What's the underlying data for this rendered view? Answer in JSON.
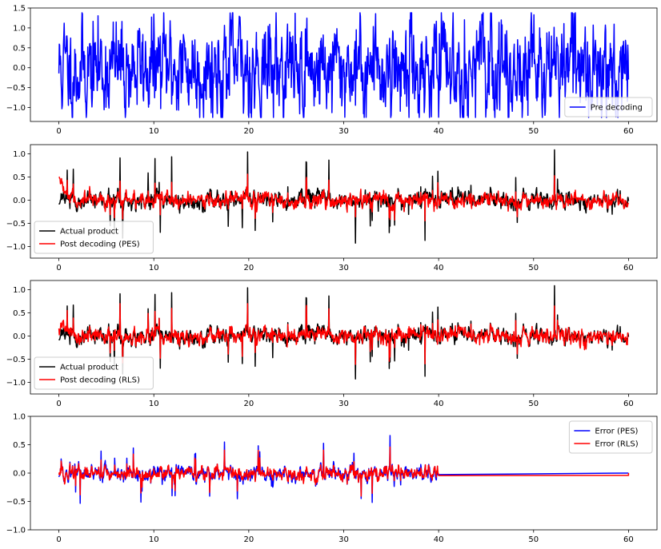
{
  "figure": {
    "background": "#ffffff"
  },
  "chart_data": [
    {
      "type": "line",
      "xlim": [
        -3,
        63
      ],
      "ylim": [
        -1.35,
        1.5
      ],
      "x_ticks": [
        0,
        10,
        20,
        30,
        40,
        50,
        60
      ],
      "y_ticks": [
        -1.0,
        -0.5,
        0.0,
        0.5,
        1.0,
        1.5
      ],
      "y_tick_labels": [
        "−1.0",
        "−0.5",
        "0.0",
        "0.5",
        "1.0",
        "1.5"
      ],
      "legend": {
        "placement": "lower-right"
      },
      "series": [
        {
          "name": "Pre decoding",
          "color": "#0000ff",
          "signal": {
            "kind": "noise",
            "seed": 11,
            "dt": 0.04,
            "x_end": 60,
            "amp": 0.52,
            "smooth": 0.55,
            "clip": [
              -1.25,
              1.38
            ]
          }
        }
      ]
    },
    {
      "type": "line",
      "xlim": [
        -3,
        63
      ],
      "ylim": [
        -1.25,
        1.2
      ],
      "x_ticks": [
        0,
        10,
        20,
        30,
        40,
        50,
        60
      ],
      "y_ticks": [
        -1.0,
        -0.5,
        0.0,
        0.5,
        1.0
      ],
      "y_tick_labels": [
        "−1.0",
        "−0.5",
        "0.0",
        "0.5",
        "1.0"
      ],
      "legend": {
        "placement": "lower-left"
      },
      "series": [
        {
          "name": "Actual product",
          "color": "#000000",
          "signal": {
            "kind": "spiky",
            "seed": 23,
            "dt": 0.04,
            "x_end": 60,
            "amp": 0.08,
            "smooth": 0.6,
            "spike_rate": 0.025,
            "spike_amp": 0.95,
            "clip": [
              -1.18,
              1.14
            ]
          }
        },
        {
          "name": "Post decoding (PES)",
          "color": "#ff0000",
          "signal": {
            "kind": "follow",
            "source": 0,
            "seed": 31,
            "gain": 0.45,
            "noise": 0.06,
            "start_bump": 0.45,
            "clip": [
              -0.75,
              0.65
            ]
          }
        }
      ]
    },
    {
      "type": "line",
      "xlim": [
        -3,
        63
      ],
      "ylim": [
        -1.25,
        1.2
      ],
      "x_ticks": [
        0,
        10,
        20,
        30,
        40,
        50,
        60
      ],
      "y_ticks": [
        -1.0,
        -0.5,
        0.0,
        0.5,
        1.0
      ],
      "y_tick_labels": [
        "−1.0",
        "−0.5",
        "0.0",
        "0.5",
        "1.0"
      ],
      "legend": {
        "placement": "lower-left"
      },
      "series": [
        {
          "name": "Actual product",
          "color": "#000000",
          "signal": {
            "kind": "spiky",
            "seed": 23,
            "dt": 0.04,
            "x_end": 60,
            "amp": 0.08,
            "smooth": 0.6,
            "spike_rate": 0.025,
            "spike_amp": 0.95,
            "clip": [
              -1.18,
              1.14
            ]
          }
        },
        {
          "name": "Post decoding (RLS)",
          "color": "#ff0000",
          "signal": {
            "kind": "follow",
            "source": 0,
            "seed": 47,
            "gain": 0.65,
            "noise": 0.05,
            "start_bump": 0.3,
            "clip": [
              -0.72,
              0.7
            ]
          }
        }
      ]
    },
    {
      "type": "line",
      "xlim": [
        -3,
        63
      ],
      "ylim": [
        -1.0,
        1.0
      ],
      "x_ticks": [
        0,
        10,
        20,
        30,
        40,
        50,
        60
      ],
      "y_ticks": [
        -1.0,
        -0.5,
        0.0,
        0.5,
        1.0
      ],
      "y_tick_labels": [
        "−1.0",
        "−0.5",
        "0.0",
        "0.5",
        "1.0"
      ],
      "legend": {
        "placement": "upper-right"
      },
      "series": [
        {
          "name": "Error (PES)",
          "color": "#0000ff",
          "signal": {
            "kind": "spiky",
            "seed": 59,
            "dt": 0.04,
            "x_end": 40,
            "amp": 0.06,
            "smooth": 0.55,
            "spike_rate": 0.02,
            "spike_amp": 0.55,
            "clip": [
              -0.68,
              0.87
            ],
            "flat_until": 60
          }
        },
        {
          "name": "Error (RLS)",
          "color": "#ff0000",
          "signal": {
            "kind": "follow",
            "source": 0,
            "seed": 61,
            "gain": 0.7,
            "noise": 0.03,
            "start_bump": 0.0,
            "clip": [
              -0.5,
              0.62
            ],
            "flat_until": 60
          }
        }
      ]
    }
  ]
}
